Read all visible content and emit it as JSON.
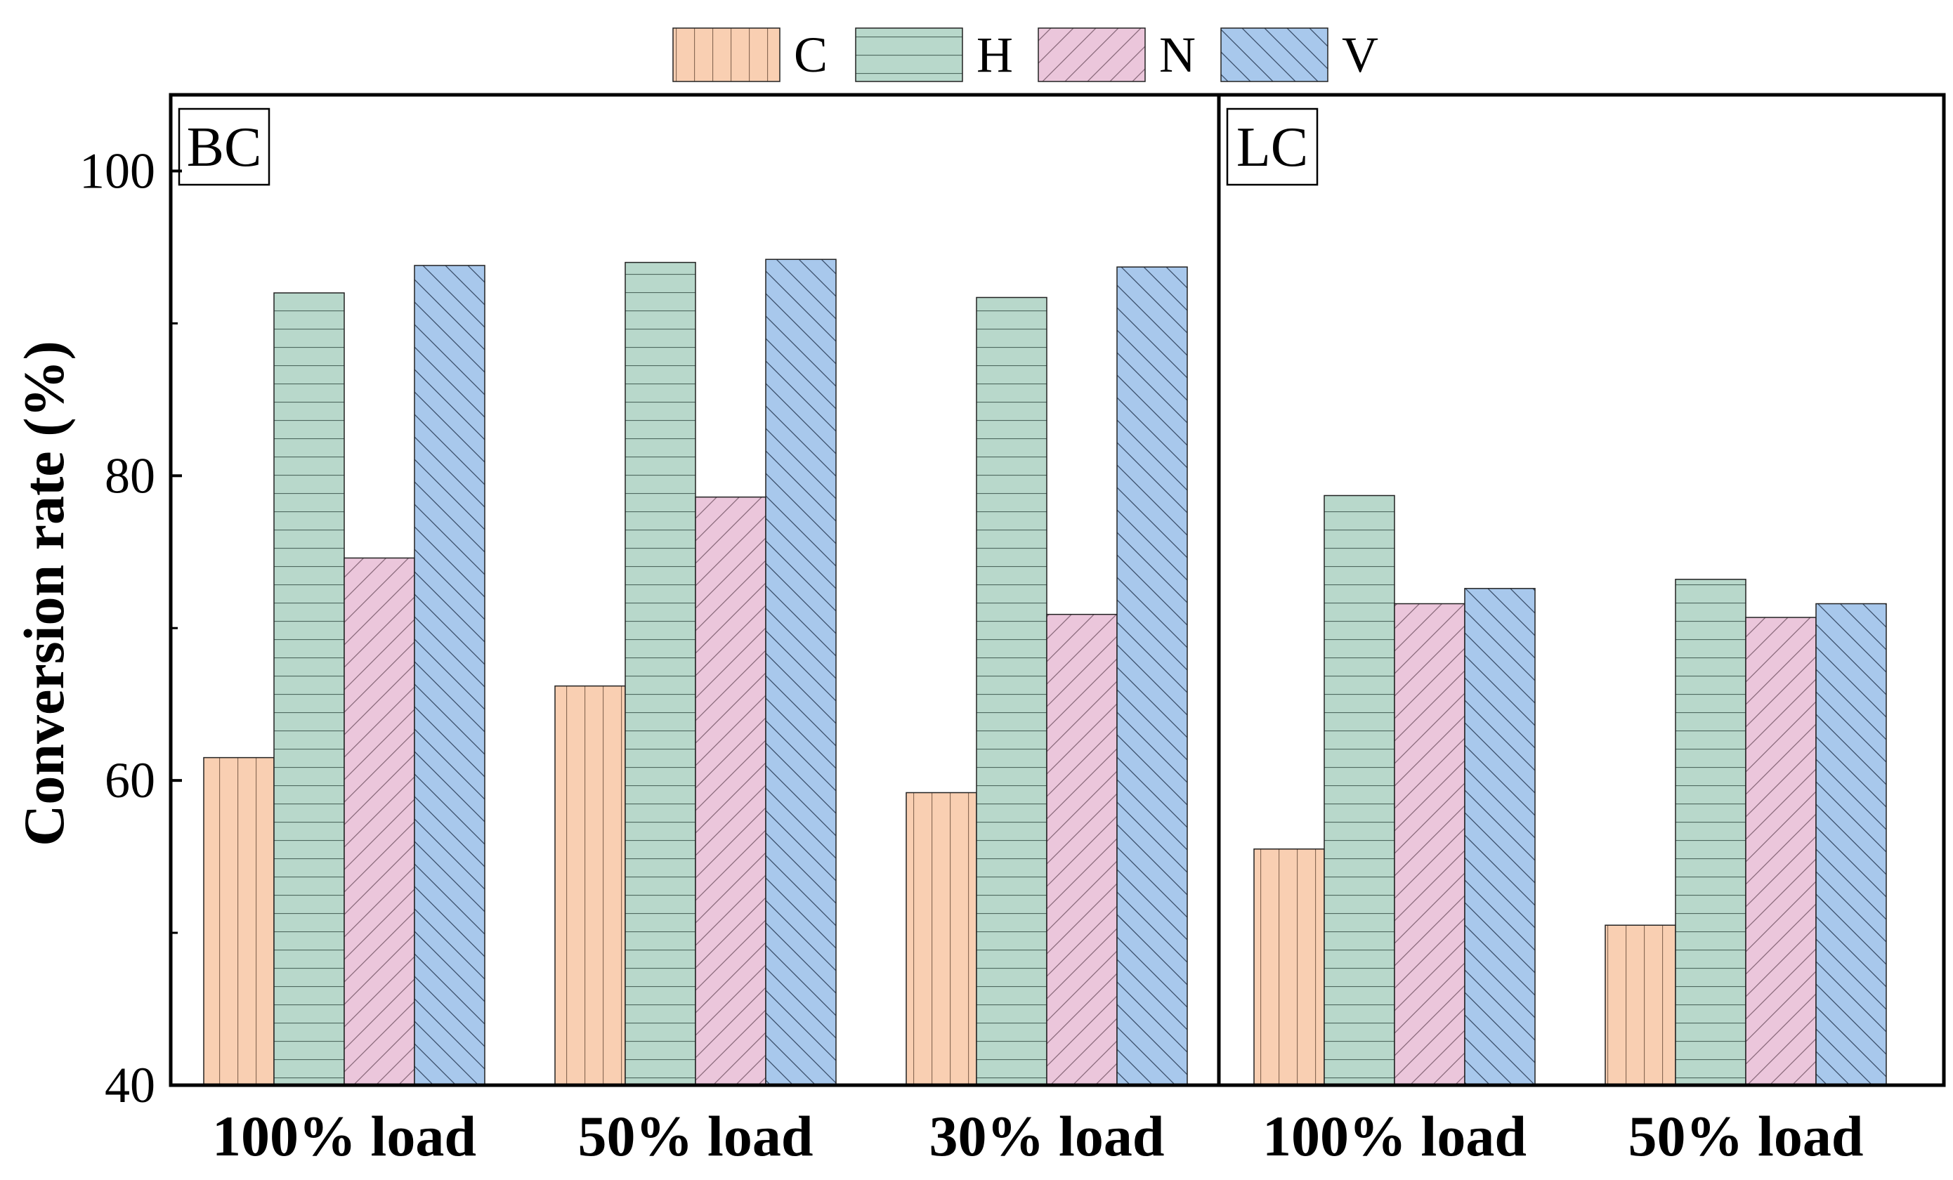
{
  "chart_data": {
    "type": "bar",
    "ylabel": "Conversion rate (%)",
    "ylim": [
      40,
      105
    ],
    "yticks": [
      40,
      60,
      80,
      100
    ],
    "yminor": [
      50,
      70,
      90
    ],
    "legend": {
      "placement": "top-center",
      "entries": [
        "C",
        "H",
        "N",
        "V"
      ]
    },
    "colors": {
      "C": "#f9cfb2",
      "H": "#b8d8cb",
      "N": "#ebc6db",
      "V": "#a8c8ec"
    },
    "panels": [
      {
        "label": "BC",
        "categories": [
          "100% load",
          "50% load",
          "30% load"
        ],
        "series": [
          {
            "name": "C",
            "values": [
              61.5,
              66.2,
              59.2
            ]
          },
          {
            "name": "H",
            "values": [
              92.0,
              94.0,
              91.7
            ]
          },
          {
            "name": "N",
            "values": [
              74.6,
              78.6,
              70.9
            ]
          },
          {
            "name": "V",
            "values": [
              93.8,
              94.2,
              93.7
            ]
          }
        ]
      },
      {
        "label": "LC",
        "categories": [
          "100% load",
          "50% load"
        ],
        "series": [
          {
            "name": "C",
            "values": [
              55.5,
              50.5
            ]
          },
          {
            "name": "H",
            "values": [
              78.7,
              73.2
            ]
          },
          {
            "name": "N",
            "values": [
              71.6,
              70.7
            ]
          },
          {
            "name": "V",
            "values": [
              72.6,
              71.6
            ]
          }
        ]
      }
    ]
  }
}
